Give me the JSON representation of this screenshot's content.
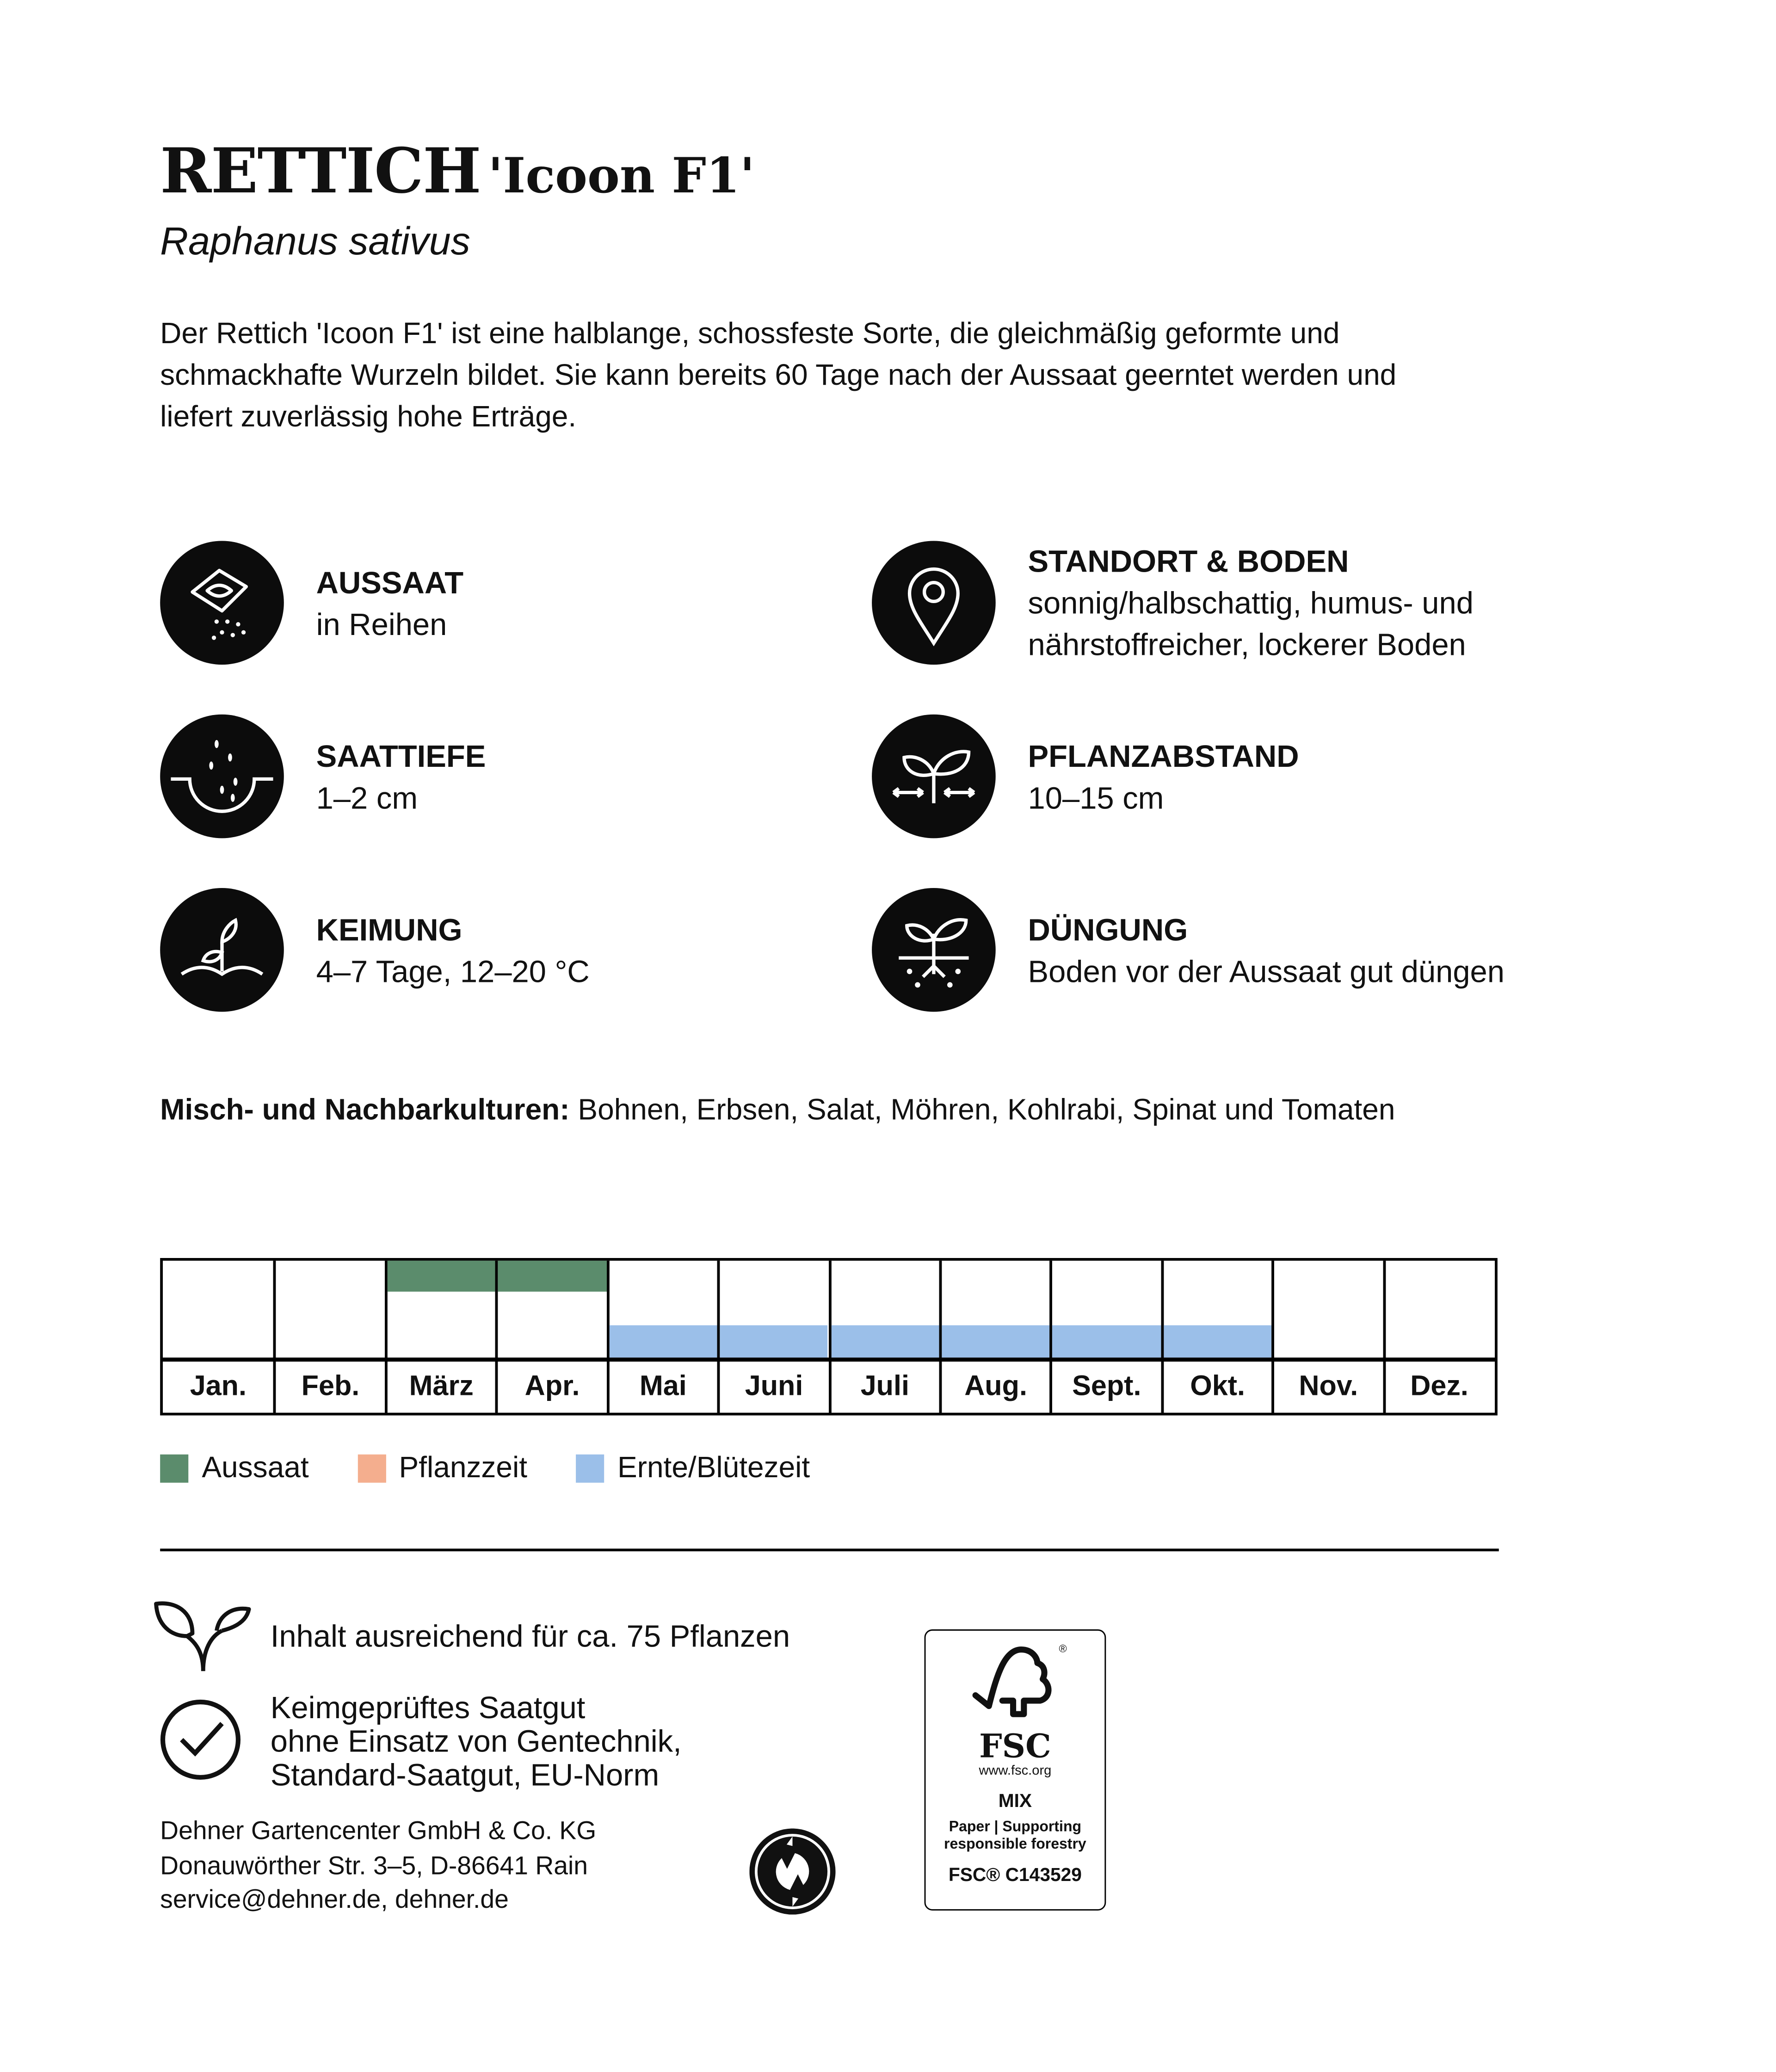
{
  "header": {
    "title": "RETTICH",
    "variety": "'Icoon F1'",
    "latin_name": "Raphanus sativus",
    "description": "Der Rettich 'Icoon F1' ist eine halblange, schossfeste Sorte, die gleichmäßig geformte und schmackhafte Wurzeln bildet. Sie kann bereits 60 Tage nach der Aussaat geerntet werden und liefert zuverlässig hohe Erträge."
  },
  "features": [
    {
      "icon": "seed-packet-icon",
      "heading": "AUSSAAT",
      "text": "in Reihen"
    },
    {
      "icon": "location-pin-icon",
      "heading": "STANDORT & BODEN",
      "text": "sonnig/halbschattig, humus- und nährstoffreicher, lockerer Boden"
    },
    {
      "icon": "sowing-depth-icon",
      "heading": "SAATTIEFE",
      "text": "1–2 cm"
    },
    {
      "icon": "plant-spacing-icon",
      "heading": "PFLANZABSTAND",
      "text": "10–15 cm"
    },
    {
      "icon": "sprout-icon",
      "heading": "KEIMUNG",
      "text": "4–7 Tage, 12–20 °C"
    },
    {
      "icon": "fertilizer-roots-icon",
      "heading": "DÜNGUNG",
      "text": "Boden vor der Aussaat gut düngen"
    }
  ],
  "companions": {
    "label": "Misch- und Nachbarkulturen:",
    "text": "Bohnen, Erbsen, Salat, Möhren, Kohlrabi, Spinat und Tomaten"
  },
  "calendar": {
    "months": [
      "Jan.",
      "Feb.",
      "März",
      "Apr.",
      "Mai",
      "Juni",
      "Juli",
      "Aug.",
      "Sept.",
      "Okt.",
      "Nov.",
      "Dez."
    ],
    "aussaat": [
      false,
      false,
      true,
      true,
      false,
      false,
      false,
      false,
      false,
      false,
      false,
      false
    ],
    "pflanzzeit": [
      false,
      false,
      false,
      false,
      false,
      false,
      false,
      false,
      false,
      false,
      false,
      false
    ],
    "ernte": [
      false,
      false,
      false,
      false,
      true,
      true,
      true,
      true,
      true,
      true,
      false,
      false
    ],
    "colors": {
      "aussaat": "#5b8c6c",
      "pflanzzeit": "#f4ae8e",
      "ernte": "#9bbfe9"
    },
    "legend": [
      "Aussaat",
      "Pflanzzeit",
      "Ernte/Blütezeit"
    ]
  },
  "footer": {
    "content": "Inhalt ausreichend für ca. 75 Pflanzen",
    "quality": [
      "Keimgeprüftes Saatgut",
      "ohne Einsatz von Gentechnik,",
      "Standard-Saatgut, EU-Norm"
    ],
    "address": [
      "Dehner Gartencenter GmbH & Co. KG",
      "Donauwörther Str. 3–5, D-86641 Rain",
      "service@dehner.de, dehner.de"
    ],
    "fsc": {
      "logo": "FSC",
      "url": "www.fsc.org",
      "type": "MIX",
      "line1": "Paper | Supporting",
      "line2": "responsible forestry",
      "code": "FSC® C143529"
    }
  }
}
